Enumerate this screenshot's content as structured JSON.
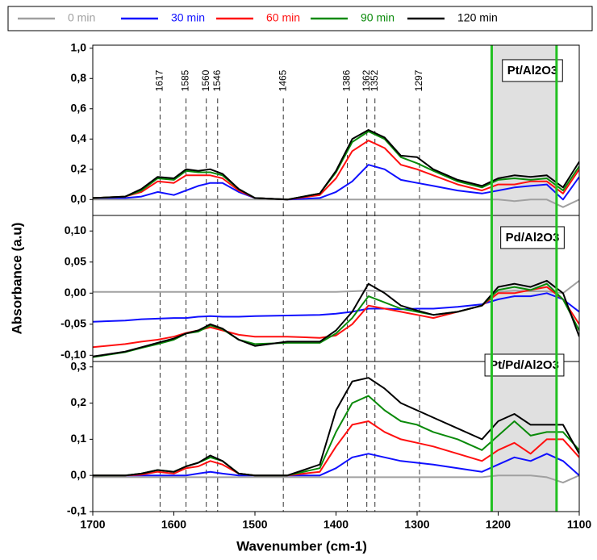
{
  "chart_data": {
    "type": "line",
    "xlabel": "Wavenumber (cm-1)",
    "ylabel": "Absorbance (a.u)",
    "x": [
      1700,
      1660,
      1640,
      1620,
      1600,
      1585,
      1570,
      1555,
      1540,
      1520,
      1500,
      1460,
      1420,
      1400,
      1380,
      1360,
      1340,
      1320,
      1300,
      1280,
      1250,
      1220,
      1200,
      1180,
      1160,
      1140,
      1120,
      1100
    ],
    "xlim": [
      1700,
      1100
    ],
    "xticks": [
      1700,
      1600,
      1500,
      1400,
      1300,
      1200,
      1100
    ],
    "series": [
      {
        "name": "0 min",
        "color": "#a0a0a0"
      },
      {
        "name": "30 min",
        "color": "#1010ff"
      },
      {
        "name": "60 min",
        "color": "#ff1010"
      },
      {
        "name": "90 min",
        "color": "#0a8a0a"
      },
      {
        "name": "120 min",
        "color": "#000000"
      }
    ],
    "markers": [
      1617,
      1585,
      1560,
      1546,
      1465,
      1386,
      1362,
      1352,
      1297
    ],
    "shaded_region": [
      1208,
      1128
    ],
    "shaded_color": "#e0e0e0",
    "shaded_edge_color": "#22c022",
    "panels": [
      {
        "title": "Pt/Al2O3",
        "ylim": [
          -0.105,
          1.02
        ],
        "yticks": [
          {
            "value": 0.0,
            "label": "0,0"
          },
          {
            "value": 0.2,
            "label": "0,2"
          },
          {
            "value": 0.4,
            "label": "0,4"
          },
          {
            "value": 0.6,
            "label": "0,6"
          },
          {
            "value": 0.8,
            "label": "0,8"
          },
          {
            "value": 1.0,
            "label": "1,0"
          }
        ],
        "values": [
          [
            0,
            0,
            0,
            0,
            0,
            0,
            0,
            0,
            0,
            0,
            0,
            0,
            0,
            0,
            0,
            0,
            0,
            0,
            0,
            0,
            0,
            0,
            0,
            -0.01,
            0,
            0,
            -0.05,
            0
          ],
          [
            0.01,
            0.01,
            0.02,
            0.05,
            0.03,
            0.06,
            0.09,
            0.11,
            0.11,
            0.05,
            0.01,
            0.0,
            0.01,
            0.05,
            0.12,
            0.23,
            0.2,
            0.13,
            0.11,
            0.09,
            0.06,
            0.04,
            0.06,
            0.08,
            0.09,
            0.1,
            0.0,
            0.15
          ],
          [
            0.01,
            0.02,
            0.05,
            0.12,
            0.11,
            0.16,
            0.16,
            0.16,
            0.14,
            0.06,
            0.01,
            0.0,
            0.03,
            0.14,
            0.32,
            0.39,
            0.34,
            0.23,
            0.2,
            0.16,
            0.1,
            0.06,
            0.1,
            0.1,
            0.12,
            0.12,
            0.04,
            0.2
          ],
          [
            0.01,
            0.02,
            0.06,
            0.14,
            0.13,
            0.19,
            0.18,
            0.18,
            0.16,
            0.07,
            0.01,
            0.0,
            0.04,
            0.18,
            0.38,
            0.45,
            0.4,
            0.28,
            0.24,
            0.19,
            0.12,
            0.08,
            0.13,
            0.14,
            0.13,
            0.14,
            0.06,
            0.22
          ],
          [
            0.01,
            0.02,
            0.07,
            0.15,
            0.14,
            0.2,
            0.19,
            0.2,
            0.17,
            0.07,
            0.01,
            0.0,
            0.04,
            0.19,
            0.4,
            0.46,
            0.41,
            0.29,
            0.28,
            0.2,
            0.13,
            0.09,
            0.14,
            0.16,
            0.15,
            0.16,
            0.08,
            0.25
          ]
        ]
      },
      {
        "title": "Pd/Al2O3",
        "ylim": [
          -0.11,
          0.125
        ],
        "yticks": [
          {
            "value": -0.1,
            "label": "-0,10"
          },
          {
            "value": -0.05,
            "label": "-0,05"
          },
          {
            "value": 0.0,
            "label": "0,00"
          },
          {
            "value": 0.05,
            "label": "0,05"
          },
          {
            "value": 0.1,
            "label": "0,10"
          }
        ],
        "values": [
          [
            0.002,
            0.002,
            0.002,
            0.002,
            0.002,
            0.002,
            0.002,
            0.002,
            0.002,
            0.002,
            0.002,
            0.002,
            0.002,
            0.002,
            0.003,
            0.004,
            0.003,
            0.002,
            0.002,
            0.002,
            0.002,
            0.002,
            0.002,
            0.004,
            0.003,
            0.003,
            0.0,
            0.02
          ],
          [
            -0.046,
            -0.044,
            -0.042,
            -0.041,
            -0.04,
            -0.04,
            -0.038,
            -0.037,
            -0.038,
            -0.038,
            -0.037,
            -0.036,
            -0.035,
            -0.033,
            -0.03,
            -0.025,
            -0.025,
            -0.026,
            -0.025,
            -0.025,
            -0.022,
            -0.018,
            -0.01,
            -0.005,
            -0.005,
            0.0,
            -0.01,
            -0.03
          ],
          [
            -0.087,
            -0.082,
            -0.078,
            -0.075,
            -0.07,
            -0.064,
            -0.06,
            -0.055,
            -0.06,
            -0.067,
            -0.07,
            -0.07,
            -0.072,
            -0.068,
            -0.05,
            -0.02,
            -0.025,
            -0.03,
            -0.035,
            -0.04,
            -0.03,
            -0.02,
            0.0,
            0.0,
            0.005,
            0.01,
            -0.01,
            -0.05
          ],
          [
            -0.103,
            -0.095,
            -0.088,
            -0.082,
            -0.075,
            -0.065,
            -0.062,
            -0.052,
            -0.058,
            -0.075,
            -0.082,
            -0.08,
            -0.08,
            -0.065,
            -0.04,
            -0.005,
            -0.015,
            -0.025,
            -0.03,
            -0.035,
            -0.03,
            -0.02,
            0.005,
            0.01,
            0.005,
            0.015,
            -0.01,
            -0.06
          ],
          [
            -0.102,
            -0.094,
            -0.087,
            -0.08,
            -0.073,
            -0.065,
            -0.06,
            -0.05,
            -0.057,
            -0.075,
            -0.085,
            -0.078,
            -0.078,
            -0.06,
            -0.03,
            0.015,
            0.0,
            -0.02,
            -0.028,
            -0.035,
            -0.03,
            -0.02,
            0.01,
            0.015,
            0.01,
            0.02,
            0.0,
            -0.07
          ]
        ]
      },
      {
        "title": "Pt/Pd/Al2O3",
        "ylim": [
          -0.1,
          0.315
        ],
        "yticks": [
          {
            "value": -0.1,
            "label": "-0,1"
          },
          {
            "value": 0.0,
            "label": "0,0"
          },
          {
            "value": 0.1,
            "label": "0,1"
          },
          {
            "value": 0.2,
            "label": "0,2"
          },
          {
            "value": 0.3,
            "label": "0,3"
          }
        ],
        "values": [
          [
            -0.005,
            -0.005,
            -0.005,
            -0.005,
            -0.005,
            -0.005,
            -0.005,
            -0.005,
            -0.005,
            -0.005,
            -0.005,
            -0.005,
            -0.005,
            -0.005,
            -0.005,
            -0.005,
            -0.005,
            -0.005,
            -0.005,
            -0.005,
            -0.005,
            -0.005,
            0.0,
            0.0,
            0.0,
            -0.005,
            -0.02,
            0.0
          ],
          [
            0,
            0,
            0,
            0,
            0,
            0,
            0.005,
            0.01,
            0.005,
            0,
            0,
            0,
            0,
            0.02,
            0.05,
            0.06,
            0.05,
            0.04,
            0.035,
            0.03,
            0.02,
            0.01,
            0.03,
            0.05,
            0.04,
            0.06,
            0.04,
            0.0
          ],
          [
            0,
            0,
            0.002,
            0.01,
            0.005,
            0.02,
            0.025,
            0.04,
            0.03,
            0.005,
            0,
            0,
            0.01,
            0.08,
            0.14,
            0.15,
            0.12,
            0.1,
            0.09,
            0.08,
            0.06,
            0.04,
            0.07,
            0.09,
            0.06,
            0.1,
            0.1,
            0.05
          ],
          [
            0,
            0,
            0.005,
            0.015,
            0.01,
            0.025,
            0.035,
            0.05,
            0.04,
            0.005,
            0,
            0,
            0.02,
            0.12,
            0.2,
            0.22,
            0.18,
            0.15,
            0.14,
            0.12,
            0.1,
            0.07,
            0.11,
            0.15,
            0.11,
            0.12,
            0.12,
            0.07
          ],
          [
            0,
            0,
            0.005,
            0.015,
            0.01,
            0.025,
            0.035,
            0.055,
            0.04,
            0.005,
            0,
            0,
            0.03,
            0.18,
            0.26,
            0.27,
            0.24,
            0.2,
            0.18,
            0.16,
            0.13,
            0.1,
            0.15,
            0.17,
            0.14,
            0.14,
            0.14,
            0.06
          ]
        ]
      }
    ]
  }
}
